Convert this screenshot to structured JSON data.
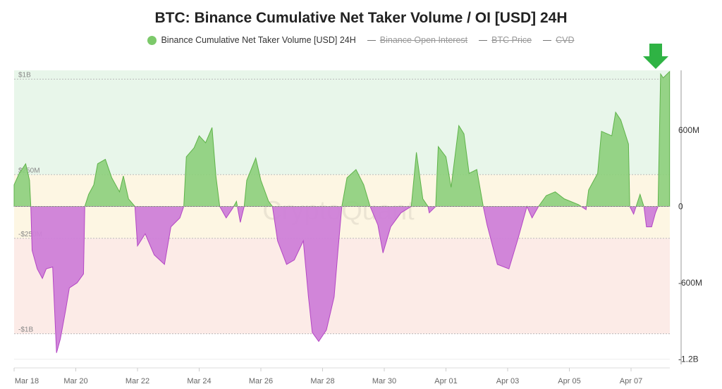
{
  "chart_data": {
    "type": "area",
    "title": "BTC: Binance Cumulative Net Taker Volume / OI [USD] 24H",
    "legend": [
      {
        "name": "Binance Cumulative Net Taker Volume [USD] 24H",
        "color": "#7cc96a",
        "enabled": true
      },
      {
        "name": "Binance Open Interest",
        "enabled": false
      },
      {
        "name": "BTC Price",
        "enabled": false
      },
      {
        "name": "CVD",
        "enabled": false
      }
    ],
    "legend_placement": "top-center",
    "watermark": "CryptoQuant",
    "x_ticks": [
      "Mar 18",
      "Mar 20",
      "Mar 22",
      "Mar 24",
      "Mar 26",
      "Mar 28",
      "Mar 30",
      "Apr 01",
      "Apr 03",
      "Apr 05",
      "Apr 07"
    ],
    "y_right_ticks": [
      {
        "label": "600M",
        "value": 600
      },
      {
        "label": "0",
        "value": 0
      },
      {
        "label": "-600M",
        "value": -600
      },
      {
        "label": "-1.2B",
        "value": -1200
      }
    ],
    "y_unit": "USD millions",
    "y_range": [
      -1200,
      1060
    ],
    "bands": [
      {
        "label": "$1B",
        "from": 250,
        "to": 1060,
        "color": "#e8f6ea"
      },
      {
        "label": "$250M",
        "from": -250,
        "to": 250,
        "color": "#fdf6e3"
      },
      {
        "label": "-$250M",
        "from": -1000,
        "to": -250,
        "color": "#fcebe7"
      },
      {
        "label": "-$1B",
        "value": -1000
      }
    ],
    "positive_color": "#8ccf7b",
    "negative_color": "#cf7fd8",
    "annotation": {
      "type": "arrow-down",
      "color": "#2fb344"
    },
    "series": [
      {
        "name": "Binance Cumulative Net Taker Volume [USD] 24H",
        "points": [
          [
            "03-18 00:00",
            170
          ],
          [
            "03-18 04:00",
            260
          ],
          [
            "03-18 09:00",
            335
          ],
          [
            "03-18 12:00",
            205
          ],
          [
            "03-18 13:00",
            0
          ],
          [
            "03-18 14:00",
            -345
          ],
          [
            "03-18 18:00",
            -490
          ],
          [
            "03-18 22:00",
            -565
          ],
          [
            "03-19 01:00",
            -490
          ],
          [
            "03-19 06:00",
            -475
          ],
          [
            "03-19 09:00",
            -1150
          ],
          [
            "03-19 12:00",
            -1040
          ],
          [
            "03-19 16:00",
            -820
          ],
          [
            "03-19 19:00",
            -640
          ],
          [
            "03-20 01:00",
            -600
          ],
          [
            "03-20 06:00",
            -530
          ],
          [
            "03-20 07:00",
            0
          ],
          [
            "03-20 10:00",
            95
          ],
          [
            "03-20 14:00",
            170
          ],
          [
            "03-20 17:00",
            335
          ],
          [
            "03-20 23:00",
            370
          ],
          [
            "03-21 04:00",
            225
          ],
          [
            "03-21 10:00",
            115
          ],
          [
            "03-21 13:00",
            240
          ],
          [
            "03-21 17:00",
            60
          ],
          [
            "03-21 22:00",
            0
          ],
          [
            "03-22 00:00",
            -310
          ],
          [
            "03-22 06:00",
            -215
          ],
          [
            "03-22 13:00",
            -380
          ],
          [
            "03-22 21:00",
            -455
          ],
          [
            "03-23 02:00",
            -160
          ],
          [
            "03-23 09:00",
            -90
          ],
          [
            "03-23 12:00",
            0
          ],
          [
            "03-23 14:00",
            390
          ],
          [
            "03-23 20:00",
            460
          ],
          [
            "03-24 00:00",
            555
          ],
          [
            "03-24 05:00",
            500
          ],
          [
            "03-24 10:00",
            620
          ],
          [
            "03-24 13:00",
            240
          ],
          [
            "03-24 16:00",
            0
          ],
          [
            "03-24 21:00",
            -90
          ],
          [
            "03-25 02:00",
            -15
          ],
          [
            "03-25 05:00",
            40
          ],
          [
            "03-25 08:00",
            -125
          ],
          [
            "03-25 11:00",
            0
          ],
          [
            "03-25 13:00",
            205
          ],
          [
            "03-25 20:00",
            380
          ],
          [
            "03-26 00:00",
            205
          ],
          [
            "03-26 06:00",
            40
          ],
          [
            "03-26 09:00",
            0
          ],
          [
            "03-26 13:00",
            -270
          ],
          [
            "03-26 20:00",
            -455
          ],
          [
            "03-27 02:00",
            -420
          ],
          [
            "03-27 09:00",
            -270
          ],
          [
            "03-27 13:00",
            -710
          ],
          [
            "03-27 16:00",
            -990
          ],
          [
            "03-27 21:00",
            -1060
          ],
          [
            "03-28 03:00",
            -970
          ],
          [
            "03-28 09:00",
            -710
          ],
          [
            "03-28 12:00",
            -345
          ],
          [
            "03-28 15:00",
            0
          ],
          [
            "03-28 19:00",
            225
          ],
          [
            "03-29 02:00",
            290
          ],
          [
            "03-29 08:00",
            170
          ],
          [
            "03-29 13:00",
            0
          ],
          [
            "03-29 19:00",
            -145
          ],
          [
            "03-29 23:00",
            -365
          ],
          [
            "03-30 05:00",
            -160
          ],
          [
            "03-30 13:00",
            -50
          ],
          [
            "03-30 21:00",
            0
          ],
          [
            "03-31 01:00",
            425
          ],
          [
            "03-31 06:00",
            60
          ],
          [
            "03-31 10:00",
            0
          ],
          [
            "03-31 11:00",
            -50
          ],
          [
            "03-31 16:00",
            0
          ],
          [
            "03-31 18:00",
            470
          ],
          [
            "04-01 00:00",
            390
          ],
          [
            "04-01 04:00",
            150
          ],
          [
            "04-01 10:00",
            635
          ],
          [
            "04-01 14:00",
            570
          ],
          [
            "04-01 18:00",
            260
          ],
          [
            "04-02 00:00",
            290
          ],
          [
            "04-02 05:00",
            0
          ],
          [
            "04-02 08:00",
            -145
          ],
          [
            "04-02 16:00",
            -455
          ],
          [
            "04-03 01:00",
            -490
          ],
          [
            "04-03 08:00",
            -255
          ],
          [
            "04-03 15:00",
            0
          ],
          [
            "04-03 19:00",
            -90
          ],
          [
            "04-04 00:00",
            0
          ],
          [
            "04-04 06:00",
            85
          ],
          [
            "04-04 13:00",
            115
          ],
          [
            "04-04 20:00",
            60
          ],
          [
            "04-05 07:00",
            15
          ],
          [
            "04-05 13:00",
            -25
          ],
          [
            "04-05 15:00",
            130
          ],
          [
            "04-05 22:00",
            260
          ],
          [
            "04-06 01:00",
            590
          ],
          [
            "04-06 09:00",
            555
          ],
          [
            "04-06 12:00",
            740
          ],
          [
            "04-06 16:00",
            680
          ],
          [
            "04-06 22:00",
            490
          ],
          [
            "04-06 23:00",
            0
          ],
          [
            "04-07 02:00",
            -60
          ],
          [
            "04-07 07:00",
            95
          ],
          [
            "04-07 10:00",
            0
          ],
          [
            "04-07 12:00",
            -160
          ],
          [
            "04-07 16:00",
            -160
          ],
          [
            "04-07 19:00",
            -50
          ],
          [
            "04-07 21:00",
            0
          ],
          [
            "04-07 23:00",
            1040
          ],
          [
            "04-08 01:00",
            1010
          ],
          [
            "04-08 06:00",
            1060
          ]
        ]
      }
    ]
  }
}
